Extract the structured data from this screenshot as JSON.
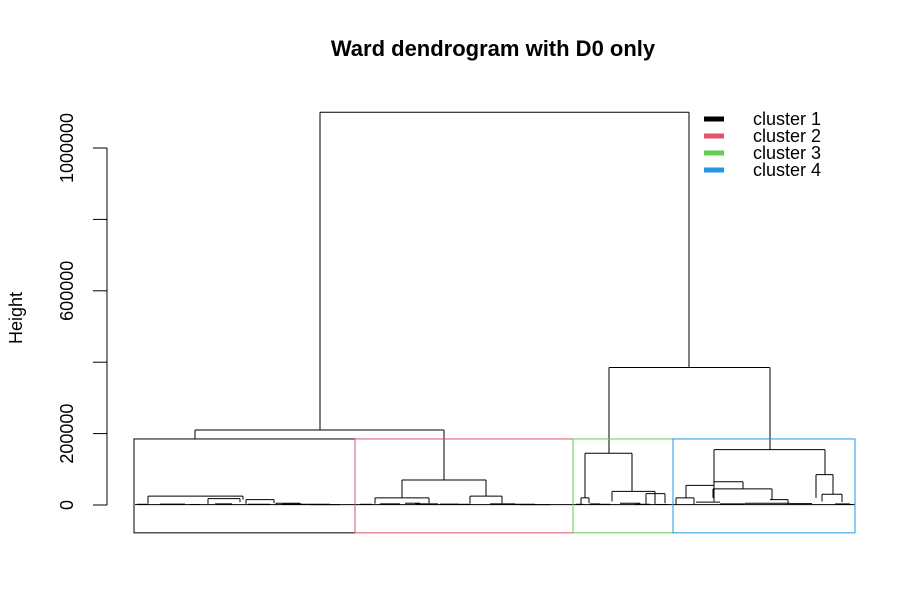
{
  "chart_data": {
    "type": "dendrogram",
    "title": "Ward dendrogram with D0 only",
    "xlabel": "",
    "ylabel": "Height",
    "ylim": [
      -78000,
      1150000
    ],
    "yticks": [
      0,
      200000,
      400000,
      600000,
      800000,
      1000000
    ],
    "yticklabels": [
      "0",
      "200000",
      "",
      "600000",
      "",
      "1000000"
    ],
    "legend_position": "top-right",
    "legend": [
      {
        "name": "cluster 1",
        "color": "#000000"
      },
      {
        "name": "cluster 2",
        "color": "#DF536B"
      },
      {
        "name": "cluster 3",
        "color": "#61D04F"
      },
      {
        "name": "cluster 4",
        "color": "#2297E6"
      }
    ],
    "merge_heights": {
      "root": 1100000,
      "left_branch": 210000,
      "right_branch": 385000,
      "cluster_1": 185000,
      "cluster_2": 175000,
      "cluster_3": 145000,
      "cluster_4": 155000,
      "cut_height": 185000
    }
  }
}
